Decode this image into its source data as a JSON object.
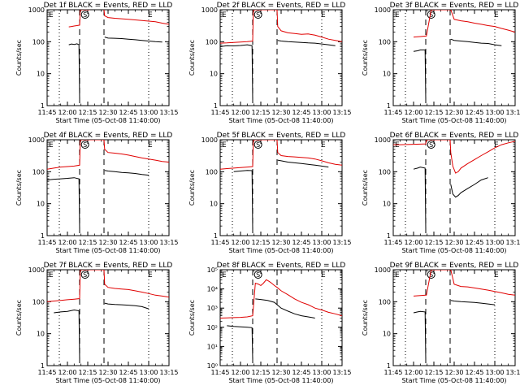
{
  "figure": {
    "ylabel": "Counts/sec",
    "xlabel": "Start Time (05-Oct-08 11:40:00)",
    "xticks": [
      "11:45",
      "12:00",
      "12:15",
      "12:30",
      "12:45",
      "13:00",
      "13:15"
    ],
    "xtick_minutes": [
      0,
      15,
      30,
      45,
      60,
      75,
      90
    ],
    "xlim_minutes": [
      0,
      90
    ],
    "x_zero_time": "11:45",
    "markers": {
      "E1": "E",
      "S": "S",
      "E2": "E"
    },
    "marker_minutes": {
      "E1": 0,
      "S": 28,
      "E2": 75
    },
    "dotted_minutes": [
      9,
      75
    ],
    "dashed_minutes": [
      24,
      42
    ],
    "colors": {
      "events": "#000000",
      "lld": "#e00000",
      "axes": "#000000"
    }
  },
  "chart_data": [
    {
      "type": "line",
      "title": "Det 1f BLACK = Events, RED = LLD",
      "ylog": true,
      "ylim": [
        1,
        1000
      ],
      "ytick_labels": [
        "1",
        "10",
        "100",
        "1000"
      ],
      "ytick_values": [
        1,
        10,
        100,
        1000
      ],
      "grid": false,
      "series": [
        {
          "name": "LLD",
          "color": "#e00000",
          "x": [
            0,
            6,
            12,
            16,
            18,
            20,
            22,
            24,
            24.5,
            25,
            27,
            29,
            30,
            31,
            31.5,
            32,
            34,
            42,
            42.5,
            45,
            50,
            60,
            70,
            80,
            85,
            90
          ],
          "y": [
            null,
            null,
            null,
            290,
            300,
            310,
            320,
            330,
            1000,
            1000,
            1000,
            1000,
            1000,
            1000,
            1000,
            null,
            null,
            1000,
            650,
            570,
            540,
            500,
            460,
            420,
            380,
            350
          ]
        },
        {
          "name": "Events",
          "color": "#000000",
          "x": [
            0,
            6,
            12,
            16,
            18,
            20,
            22,
            23.5,
            24,
            24.5,
            25,
            27,
            30,
            31,
            31.5,
            32,
            42,
            42.5,
            45,
            50,
            55,
            60,
            65,
            70,
            75,
            80,
            85,
            90
          ],
          "y": [
            null,
            null,
            null,
            80,
            85,
            82,
            86,
            80,
            1.5,
            null,
            null,
            null,
            null,
            null,
            null,
            null,
            null,
            140,
            130,
            128,
            125,
            120,
            115,
            110,
            105,
            100,
            98,
            null
          ]
        }
      ]
    },
    {
      "type": "line",
      "title": "Det 2f BLACK = Events, RED = LLD",
      "ylog": true,
      "ylim": [
        1,
        1000
      ],
      "ytick_labels": [
        "1",
        "10",
        "100",
        "1000"
      ],
      "ytick_values": [
        1,
        10,
        100,
        1000
      ],
      "grid": false,
      "series": [
        {
          "name": "LLD",
          "color": "#e00000",
          "x": [
            0,
            5,
            10,
            15,
            20,
            24,
            24.5,
            28,
            32,
            42,
            42.5,
            45,
            50,
            55,
            60,
            65,
            70,
            75,
            80,
            85,
            90
          ],
          "y": [
            90,
            92,
            95,
            98,
            100,
            105,
            1000,
            1000,
            1000,
            1000,
            300,
            220,
            190,
            180,
            170,
            175,
            160,
            140,
            120,
            110,
            100
          ]
        },
        {
          "name": "Events",
          "color": "#000000",
          "x": [
            0,
            5,
            10,
            15,
            20,
            23.5,
            24,
            24.5,
            42,
            42.5,
            45,
            50,
            55,
            60,
            65,
            70,
            75,
            80,
            85
          ],
          "y": [
            70,
            75,
            74,
            76,
            80,
            75,
            1.5,
            null,
            null,
            110,
            105,
            100,
            98,
            95,
            92,
            90,
            85,
            80,
            75
          ]
        }
      ]
    },
    {
      "type": "line",
      "title": "Det 3f BLACK = Events, RED = LLD",
      "ylog": true,
      "ylim": [
        1,
        1000
      ],
      "ytick_labels": [
        "1",
        "10",
        "100",
        "1000"
      ],
      "ytick_values": [
        1,
        10,
        100,
        1000
      ],
      "grid": false,
      "series": [
        {
          "name": "LLD",
          "color": "#e00000",
          "x": [
            15,
            20,
            24,
            24.5,
            28,
            32,
            42,
            42.5,
            45,
            50,
            55,
            60,
            65,
            70,
            75,
            80,
            85,
            90
          ],
          "y": [
            140,
            145,
            150,
            150,
            1000,
            1000,
            1000,
            1000,
            500,
            450,
            420,
            380,
            350,
            320,
            300,
            260,
            230,
            200
          ]
        },
        {
          "name": "Events",
          "color": "#000000",
          "x": [
            15,
            18,
            20,
            23.5,
            24,
            24.5,
            42,
            42.5,
            45,
            50,
            55,
            60,
            65,
            70,
            75,
            80
          ],
          "y": [
            50,
            52,
            55,
            55,
            1.5,
            null,
            null,
            120,
            110,
            105,
            100,
            95,
            90,
            88,
            80,
            75
          ]
        }
      ]
    },
    {
      "type": "line",
      "title": "Det 4f BLACK = Events, RED = LLD",
      "ylog": true,
      "ylim": [
        1,
        1000
      ],
      "ytick_labels": [
        "1",
        "10",
        "100",
        "1000"
      ],
      "ytick_values": [
        1,
        10,
        100,
        1000
      ],
      "grid": false,
      "series": [
        {
          "name": "LLD",
          "color": "#e00000",
          "x": [
            0,
            5,
            10,
            15,
            20,
            24,
            24.5,
            28,
            32,
            42,
            42.5,
            45,
            50,
            55,
            60,
            65,
            70,
            75,
            80,
            85,
            90
          ],
          "y": [
            120,
            130,
            140,
            145,
            150,
            160,
            1000,
            1000,
            1000,
            1000,
            500,
            400,
            380,
            360,
            330,
            300,
            270,
            250,
            230,
            210,
            200
          ]
        },
        {
          "name": "Events",
          "color": "#000000",
          "x": [
            0,
            5,
            10,
            15,
            20,
            23.5,
            24,
            24.5,
            42,
            42.5,
            45,
            50,
            55,
            60,
            65,
            70,
            75
          ],
          "y": [
            55,
            58,
            60,
            62,
            65,
            60,
            1.5,
            null,
            null,
            110,
            105,
            100,
            95,
            92,
            88,
            82,
            78
          ]
        }
      ]
    },
    {
      "type": "line",
      "title": "Det 5f BLACK = Events, RED = LLD",
      "ylog": true,
      "ylim": [
        1,
        1000
      ],
      "ytick_labels": [
        "1",
        "10",
        "100",
        "1000"
      ],
      "ytick_values": [
        1,
        10,
        100,
        1000
      ],
      "grid": false,
      "series": [
        {
          "name": "LLD",
          "color": "#e00000",
          "x": [
            0,
            5,
            10,
            15,
            20,
            24,
            24.5,
            28,
            32,
            42,
            42.5,
            45,
            50,
            55,
            60,
            65,
            70,
            75,
            80,
            85,
            90
          ],
          "y": [
            120,
            125,
            130,
            135,
            140,
            145,
            1000,
            1000,
            1000,
            1000,
            400,
            320,
            300,
            290,
            280,
            270,
            250,
            220,
            190,
            170,
            160
          ]
        },
        {
          "name": "Events",
          "color": "#000000",
          "x": [
            10,
            15,
            20,
            23.5,
            24,
            24.5,
            42,
            42.5,
            45,
            50,
            55,
            60,
            65,
            70,
            75,
            80
          ],
          "y": [
            100,
            105,
            110,
            108,
            1.5,
            null,
            null,
            230,
            220,
            200,
            190,
            180,
            170,
            160,
            150,
            140
          ]
        }
      ]
    },
    {
      "type": "line",
      "title": "Det 6f BLACK = Events, RED = LLD",
      "ylog": true,
      "ylim": [
        1,
        1000
      ],
      "ytick_labels": [
        "1",
        "10",
        "100",
        "1000"
      ],
      "ytick_values": [
        1,
        10,
        100,
        1000
      ],
      "grid": false,
      "series": [
        {
          "name": "LLD",
          "color": "#e00000",
          "x": [
            0,
            5,
            10,
            15,
            20,
            24,
            24.5,
            28,
            32,
            42,
            42.5,
            44,
            46,
            48,
            50,
            55,
            60,
            65,
            70,
            75,
            80,
            85,
            90
          ],
          "y": [
            700,
            700,
            710,
            720,
            730,
            740,
            1000,
            1000,
            1000,
            1000,
            400,
            150,
            90,
            100,
            130,
            180,
            240,
            320,
            420,
            560,
            700,
            800,
            900
          ]
        },
        {
          "name": "Events",
          "color": "#000000",
          "x": [
            15,
            18,
            20,
            23.5,
            24,
            24.5,
            42,
            42.5,
            44,
            46,
            48,
            50,
            55,
            60,
            65,
            70
          ],
          "y": [
            120,
            130,
            140,
            130,
            1.5,
            null,
            null,
            40,
            20,
            16,
            18,
            22,
            30,
            40,
            55,
            65
          ]
        }
      ]
    },
    {
      "type": "line",
      "title": "Det 7f BLACK = Events, RED = LLD",
      "ylog": true,
      "ylim": [
        1,
        1000
      ],
      "ytick_labels": [
        "1",
        "10",
        "100",
        "1000"
      ],
      "ytick_values": [
        1,
        10,
        100,
        1000
      ],
      "grid": false,
      "series": [
        {
          "name": "LLD",
          "color": "#e00000",
          "x": [
            0,
            5,
            10,
            15,
            20,
            24,
            24.5,
            28,
            32,
            42,
            42.5,
            45,
            50,
            55,
            60,
            65,
            70,
            75,
            80,
            85,
            90
          ],
          "y": [
            100,
            105,
            110,
            115,
            120,
            125,
            1000,
            1000,
            1000,
            1000,
            350,
            280,
            260,
            250,
            240,
            220,
            200,
            180,
            160,
            150,
            140
          ]
        },
        {
          "name": "Events",
          "color": "#000000",
          "x": [
            5,
            10,
            15,
            20,
            23.5,
            24,
            24.5,
            42,
            42.5,
            45,
            50,
            55,
            60,
            65,
            70,
            75
          ],
          "y": [
            45,
            48,
            50,
            55,
            52,
            1.5,
            null,
            null,
            90,
            85,
            82,
            80,
            78,
            75,
            70,
            60
          ]
        }
      ]
    },
    {
      "type": "line",
      "title": "Det 8f BLACK = Events, RED = LLD",
      "ylog": true,
      "ylim": [
        1,
        100000
      ],
      "ytick_labels": [
        "10⁰",
        "10¹",
        "10²",
        "10³",
        "10⁴",
        "10⁵"
      ],
      "ytick_values": [
        1,
        10,
        100,
        1000,
        10000,
        100000
      ],
      "grid": false,
      "series": [
        {
          "name": "LLD",
          "color": "#e00000",
          "x": [
            0,
            5,
            10,
            15,
            20,
            24,
            26,
            28,
            30,
            32,
            34,
            36,
            38,
            40,
            42,
            45,
            50,
            55,
            60,
            65,
            70,
            75,
            80,
            85,
            90
          ],
          "y": [
            300,
            310,
            320,
            330,
            350,
            400,
            20000,
            18000,
            15000,
            20000,
            30000,
            25000,
            20000,
            15000,
            12000,
            8000,
            5000,
            3000,
            2000,
            1500,
            1000,
            800,
            600,
            500,
            400
          ]
        },
        {
          "name": "Events",
          "color": "#000000",
          "x": [
            5,
            10,
            15,
            20,
            23.5,
            24,
            24.5,
            26,
            30,
            35,
            40,
            42,
            45,
            50,
            55,
            60,
            65,
            70
          ],
          "y": [
            120,
            110,
            105,
            100,
            95,
            2,
            null,
            3000,
            2800,
            2500,
            2000,
            1500,
            1000,
            700,
            500,
            400,
            350,
            300
          ]
        }
      ]
    },
    {
      "type": "line",
      "title": "Det 9f BLACK = Events, RED = LLD",
      "ylog": true,
      "ylim": [
        1,
        1000
      ],
      "ytick_labels": [
        "1",
        "10",
        "100",
        "1000"
      ],
      "ytick_values": [
        1,
        10,
        100,
        1000
      ],
      "grid": false,
      "series": [
        {
          "name": "LLD",
          "color": "#e00000",
          "x": [
            15,
            20,
            24,
            24.5,
            28,
            32,
            42,
            42.5,
            45,
            50,
            55,
            60,
            65,
            70,
            75,
            80,
            85,
            90
          ],
          "y": [
            150,
            155,
            160,
            160,
            1000,
            1000,
            1000,
            1000,
            350,
            300,
            290,
            270,
            250,
            230,
            210,
            190,
            170,
            160
          ]
        },
        {
          "name": "Events",
          "color": "#000000",
          "x": [
            15,
            18,
            20,
            23.5,
            24,
            24.5,
            42,
            42.5,
            45,
            50,
            55,
            60,
            65,
            70,
            75
          ],
          "y": [
            45,
            48,
            50,
            48,
            1.5,
            null,
            null,
            110,
            105,
            100,
            98,
            95,
            90,
            85,
            80
          ]
        }
      ]
    }
  ]
}
